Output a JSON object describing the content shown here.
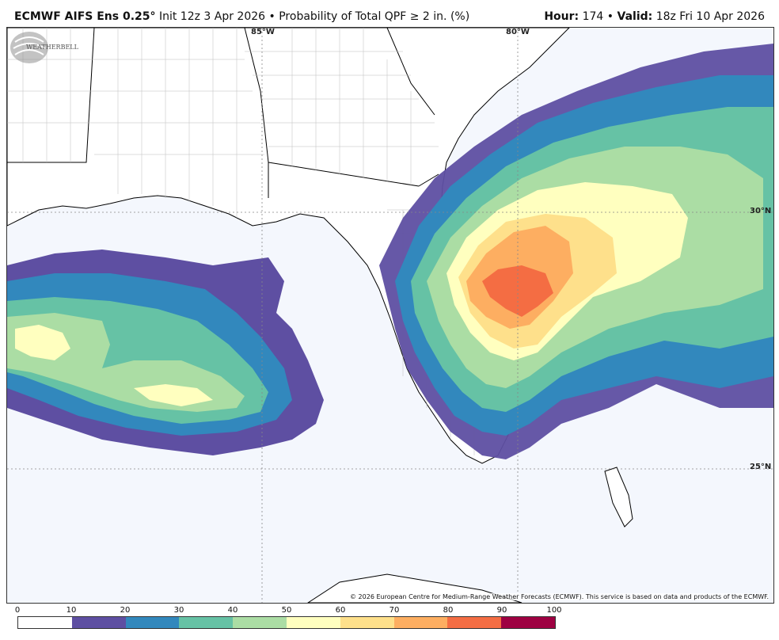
{
  "header": {
    "model": "ECMWF AIFS Ens 0.25",
    "degree_sign": "°",
    "init": "Init 12z 3 Apr 2026",
    "bullet": "•",
    "product": "Probability of Total QPF ≥ 2 in. (%)",
    "hour_label": "Hour:",
    "hour_value": "174",
    "valid_label": "Valid:",
    "valid_value": "18z Fri 10 Apr 2026"
  },
  "map": {
    "lon_labels": [
      "85°W",
      "80°W"
    ],
    "lat_labels": [
      "30°N",
      "25°N"
    ],
    "copyright": "© 2026 European Centre for Medium-Range Weather Forecasts (ECMWF). This service is based on data and products of the ECMWF.",
    "logo_text": "WEATHERBELL"
  },
  "legend": {
    "ticks": [
      "0",
      "10",
      "20",
      "30",
      "40",
      "50",
      "60",
      "70",
      "80",
      "90",
      "100"
    ],
    "colors": [
      "#ffffff",
      "#5e4fa2",
      "#3288bd",
      "#66c2a5",
      "#abdda4",
      "#ffffbf",
      "#fee08b",
      "#fdae61",
      "#f46d43",
      "#d53e4f",
      "#9e0142"
    ]
  }
}
